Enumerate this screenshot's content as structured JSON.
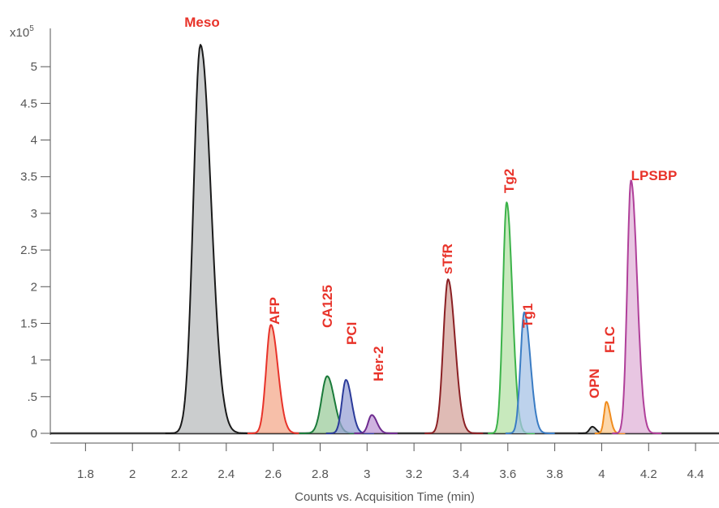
{
  "chart_data": {
    "type": "area",
    "title": "",
    "xlabel": "Counts vs. Acquisition Time (min)",
    "ylabel": "",
    "y_multiplier": "x10",
    "y_multiplier_exp": "5",
    "xlim": [
      1.65,
      4.5
    ],
    "ylim": [
      0,
      5.5
    ],
    "x_ticks": [
      1.8,
      2,
      2.2,
      2.4,
      2.6,
      2.8,
      3,
      3.2,
      3.4,
      3.6,
      3.8,
      4,
      4.2,
      4.4
    ],
    "x_tick_labels": [
      "1.8",
      "2",
      "2.2",
      "2.4",
      "2.6",
      "2.8",
      "3",
      "3.2",
      "3.4",
      "3.6",
      "3.8",
      "4",
      "4.2",
      "4.4"
    ],
    "y_ticks": [
      0,
      0.5,
      1,
      1.5,
      2,
      2.5,
      3,
      3.5,
      4,
      4.5,
      5
    ],
    "y_tick_labels": [
      "0",
      ".5",
      "1",
      "1.5",
      "2",
      "2.5",
      "3",
      "3.5",
      "4",
      "4.5",
      "5"
    ],
    "grid": false,
    "label_color": "#e8332a",
    "series": [
      {
        "name": "Meso",
        "rt": 2.29,
        "height": 5.3,
        "sigma_left": 0.03,
        "sigma_right": 0.045,
        "line_color": "#1a1a1a",
        "fill_color": "#b9bcbe"
      },
      {
        "name": "AFP",
        "rt": 2.59,
        "height": 1.48,
        "sigma_left": 0.02,
        "sigma_right": 0.03,
        "line_color": "#e8332a",
        "fill_color": "#f4a98c"
      },
      {
        "name": "CA125",
        "rt": 2.83,
        "height": 0.78,
        "sigma_left": 0.024,
        "sigma_right": 0.03,
        "line_color": "#1a7a3a",
        "fill_color": "#9ccc9c"
      },
      {
        "name": "PCI",
        "rt": 2.91,
        "height": 0.73,
        "sigma_left": 0.017,
        "sigma_right": 0.024,
        "line_color": "#2b3b9a",
        "fill_color": "#9aa3d6"
      },
      {
        "name": "Her-2",
        "rt": 3.02,
        "height": 0.25,
        "sigma_left": 0.015,
        "sigma_right": 0.022,
        "line_color": "#6e2b8f",
        "fill_color": "#bf9ad6"
      },
      {
        "name": "sTfR",
        "rt": 3.345,
        "height": 2.1,
        "sigma_left": 0.02,
        "sigma_right": 0.03,
        "line_color": "#8b2024",
        "fill_color": "#d4a49c"
      },
      {
        "name": "Tg2",
        "rt": 3.595,
        "height": 3.15,
        "sigma_left": 0.016,
        "sigma_right": 0.024,
        "line_color": "#3cb34a",
        "fill_color": "#b5e2a7"
      },
      {
        "name": "Tg1",
        "rt": 3.67,
        "height": 1.65,
        "sigma_left": 0.016,
        "sigma_right": 0.026,
        "line_color": "#3a7cc4",
        "fill_color": "#a7c3e6"
      },
      {
        "name": "OPN",
        "rt": 3.96,
        "height": 0.09,
        "sigma_left": 0.012,
        "sigma_right": 0.016,
        "line_color": "#1a1a1a",
        "fill_color": "#b9bcbe"
      },
      {
        "name": "FLC",
        "rt": 4.02,
        "height": 0.43,
        "sigma_left": 0.01,
        "sigma_right": 0.016,
        "line_color": "#f08c1e",
        "fill_color": "#fbc98d"
      },
      {
        "name": "LPSBP",
        "rt": 4.125,
        "height": 3.45,
        "sigma_left": 0.016,
        "sigma_right": 0.026,
        "line_color": "#b0409a",
        "fill_color": "#e0b3d8"
      }
    ]
  }
}
